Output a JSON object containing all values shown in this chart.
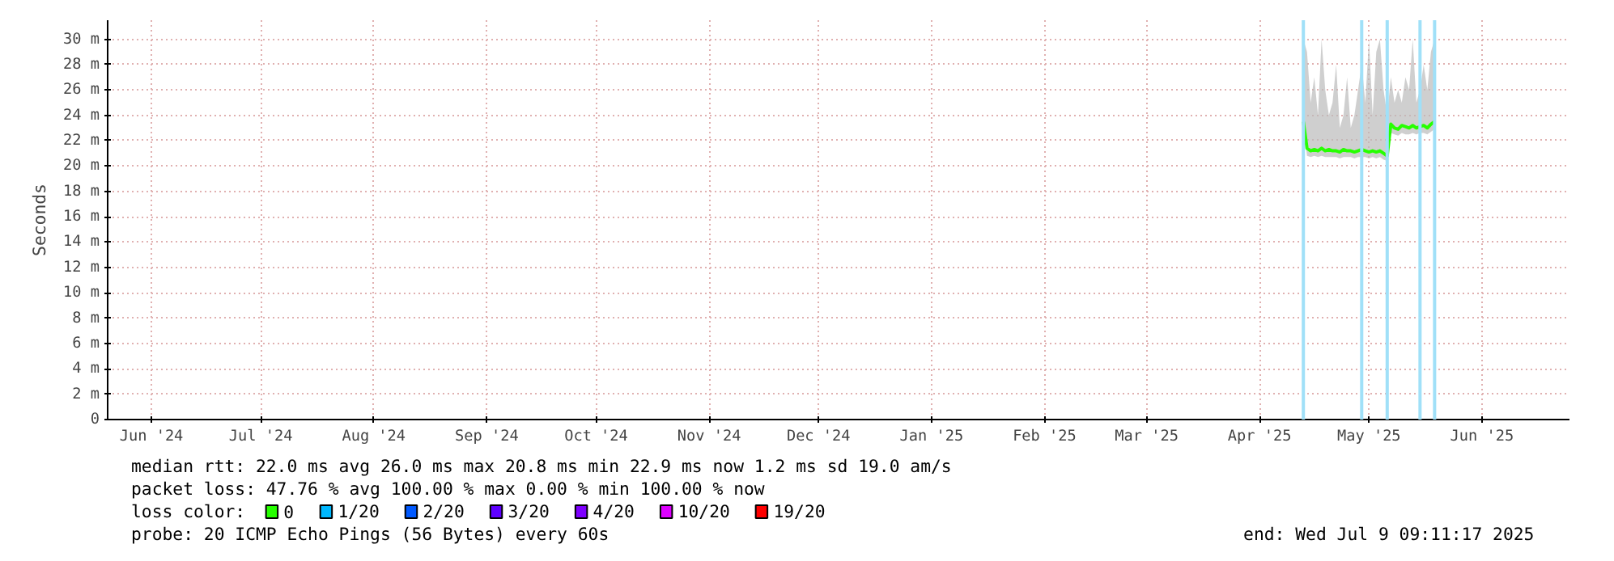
{
  "chart_data": {
    "type": "line",
    "ylabel": "Seconds",
    "x": [
      "2025-04-27",
      "2025-04-28",
      "2025-04-29",
      "2025-04-30",
      "2025-05-01",
      "2025-05-02",
      "2025-05-03",
      "2025-05-04",
      "2025-05-05",
      "2025-05-06",
      "2025-05-07",
      "2025-05-08",
      "2025-05-09",
      "2025-05-10",
      "2025-05-11",
      "2025-05-12",
      "2025-05-13",
      "2025-05-14",
      "2025-05-15",
      "2025-05-16",
      "2025-05-17",
      "2025-05-18",
      "2025-05-19",
      "2025-05-20",
      "2025-05-21",
      "2025-05-22",
      "2025-05-23",
      "2025-05-24",
      "2025-05-25",
      "2025-05-26",
      "2025-05-27",
      "2025-05-28",
      "2025-05-29",
      "2025-05-30",
      "2025-05-31",
      "2025-06-01",
      "2025-06-02"
    ],
    "series": [
      {
        "name": "0",
        "color": "#26ff00",
        "values": [
          23.5,
          21.4,
          21.2,
          21.3,
          21.2,
          21.4,
          21.2,
          21.3,
          21.2,
          21.2,
          21.1,
          21.3,
          21.2,
          21.2,
          21.1,
          21.2,
          21.3,
          21.2,
          21.1,
          21.2,
          21.1,
          21.2,
          21.0,
          20.8,
          23.3,
          23.0,
          22.9,
          23.2,
          23.1,
          23.0,
          23.2,
          23.0,
          23.1,
          23.2,
          23.0,
          23.3,
          23.5
        ],
        "lower": [
          23.0,
          20.8,
          20.7,
          20.8,
          20.7,
          20.8,
          20.7,
          20.7,
          20.7,
          20.7,
          20.6,
          20.7,
          20.7,
          20.7,
          20.6,
          20.7,
          20.7,
          20.7,
          20.6,
          20.7,
          20.6,
          20.7,
          20.5,
          20.4,
          22.6,
          22.5,
          22.4,
          22.6,
          22.5,
          22.5,
          22.6,
          22.5,
          22.6,
          22.6,
          22.5,
          22.7,
          22.9
        ],
        "upper": [
          30,
          29,
          25,
          27,
          24,
          30,
          26,
          24,
          25,
          28,
          23,
          24,
          27,
          23,
          24,
          26,
          28,
          25,
          30,
          24,
          29,
          30,
          26,
          24,
          27,
          25,
          26,
          25,
          27,
          26,
          30,
          25,
          26,
          28,
          26,
          29,
          30
        ]
      },
      {
        "name": "1/20",
        "color": "#00b8ff",
        "values": [
          null,
          null,
          null,
          null,
          null,
          null,
          null,
          null,
          null,
          null,
          null,
          null,
          null,
          null,
          null,
          null,
          null,
          null,
          null,
          null,
          null,
          null,
          null,
          null,
          null,
          null,
          null,
          null,
          null,
          null,
          null,
          null,
          null,
          null,
          null,
          null,
          null
        ]
      },
      {
        "name": "2/20",
        "color": "#0059ff",
        "values": [
          null,
          null,
          null,
          null,
          null,
          null,
          null,
          null,
          null,
          null,
          null,
          null,
          null,
          null,
          null,
          null,
          null,
          null,
          null,
          null,
          null,
          null,
          null,
          null,
          null,
          null,
          null,
          null,
          null,
          null,
          null,
          null,
          null,
          null,
          null,
          null,
          null
        ]
      },
      {
        "name": "3/20",
        "color": "#5e00ff",
        "values": [
          null,
          null,
          null,
          null,
          null,
          null,
          null,
          null,
          null,
          null,
          null,
          null,
          null,
          null,
          null,
          null,
          null,
          null,
          null,
          null,
          null,
          null,
          null,
          null,
          null,
          null,
          null,
          null,
          null,
          null,
          null,
          null,
          null,
          null,
          null,
          null,
          null
        ]
      },
      {
        "name": "4/20",
        "color": "#7e00ff",
        "values": [
          null,
          null,
          null,
          null,
          null,
          null,
          null,
          null,
          null,
          null,
          null,
          null,
          null,
          null,
          null,
          null,
          null,
          null,
          null,
          null,
          null,
          null,
          null,
          null,
          null,
          null,
          null,
          null,
          null,
          null,
          null,
          null,
          null,
          null,
          null,
          null,
          null
        ]
      },
      {
        "name": "10/20",
        "color": "#dd00ff",
        "values": [
          null,
          null,
          null,
          null,
          null,
          null,
          null,
          null,
          null,
          null,
          null,
          null,
          null,
          null,
          null,
          null,
          null,
          null,
          null,
          null,
          null,
          null,
          null,
          null,
          null,
          null,
          null,
          null,
          null,
          null,
          null,
          null,
          null,
          null,
          null,
          null,
          null
        ]
      },
      {
        "name": "19/20",
        "color": "#ff0000",
        "values": [
          null,
          null,
          null,
          null,
          null,
          null,
          null,
          null,
          null,
          null,
          null,
          null,
          null,
          null,
          null,
          null,
          null,
          null,
          null,
          null,
          null,
          null,
          null,
          null,
          null,
          null,
          null,
          null,
          null,
          null,
          null,
          null,
          null,
          null,
          null,
          null,
          null
        ]
      }
    ],
    "legend_title": "loss color:",
    "legend": "bottom",
    "ref_lines": [
      {
        "axis": "x",
        "value": "2025-04-27",
        "color": "#a0e0f8"
      },
      {
        "axis": "x",
        "value": "2025-05-13",
        "color": "#a0e0f8"
      },
      {
        "axis": "x",
        "value": "2025-05-20",
        "color": "#a0e0f8"
      },
      {
        "axis": "x",
        "value": "2025-05-29",
        "color": "#a0e0f8"
      },
      {
        "axis": "x",
        "value": "2025-06-02",
        "color": "#a0e0f8"
      }
    ],
    "xlim": [
      "2024-06-03",
      "2025-07-09"
    ],
    "xticks": [
      {
        "value": "2024-06-15",
        "label": "Jun '24"
      },
      {
        "value": "2024-07-15",
        "label": "Jul '24"
      },
      {
        "value": "2024-08-15",
        "label": "Aug '24"
      },
      {
        "value": "2024-09-15",
        "label": "Sep '24"
      },
      {
        "value": "2024-10-15",
        "label": "Oct '24"
      },
      {
        "value": "2024-11-15",
        "label": "Nov '24"
      },
      {
        "value": "2024-12-15",
        "label": "Dec '24"
      },
      {
        "value": "2025-01-15",
        "label": "Jan '25"
      },
      {
        "value": "2025-02-15",
        "label": "Feb '25"
      },
      {
        "value": "2025-03-15",
        "label": "Mar '25"
      },
      {
        "value": "2025-04-15",
        "label": "Apr '25"
      },
      {
        "value": "2025-05-15",
        "label": "May '25"
      },
      {
        "value": "2025-06-15",
        "label": "Jun '25"
      }
    ],
    "ylim": [
      0,
      31.5
    ],
    "yticks": [
      0,
      {
        "value": 2,
        "label": "2 m"
      },
      {
        "value": 4,
        "label": "4 m"
      },
      {
        "value": 6,
        "label": "6 m"
      },
      {
        "value": 8,
        "label": "8 m"
      },
      {
        "value": 10,
        "label": "10 m"
      },
      {
        "value": 12,
        "label": "12 m"
      },
      {
        "value": 14,
        "label": "14 m"
      },
      {
        "value": 16,
        "label": "16 m"
      },
      {
        "value": 18,
        "label": "18 m"
      },
      {
        "value": 20,
        "label": "20 m"
      },
      {
        "value": 22,
        "label": "22 m"
      },
      {
        "value": 24,
        "label": "24 m"
      },
      {
        "value": 26,
        "label": "26 m"
      },
      {
        "value": 28,
        "label": "28 m"
      },
      {
        "value": 30,
        "label": "30 m"
      }
    ],
    "grid": true,
    "annotations": [
      "median rtt:  22.0 ms avg  26.0 ms max  20.8 ms min  22.9 ms now  1.2 ms sd  19.0   am/s",
      "packet loss: 47.76 % avg  100.00 % max  0.00 % min  100.00 % now",
      "probe:       20 ICMP Echo Pings (56 Bytes) every 60s",
      "end: Wed Jul  9 09:11:17 2025"
    ]
  }
}
